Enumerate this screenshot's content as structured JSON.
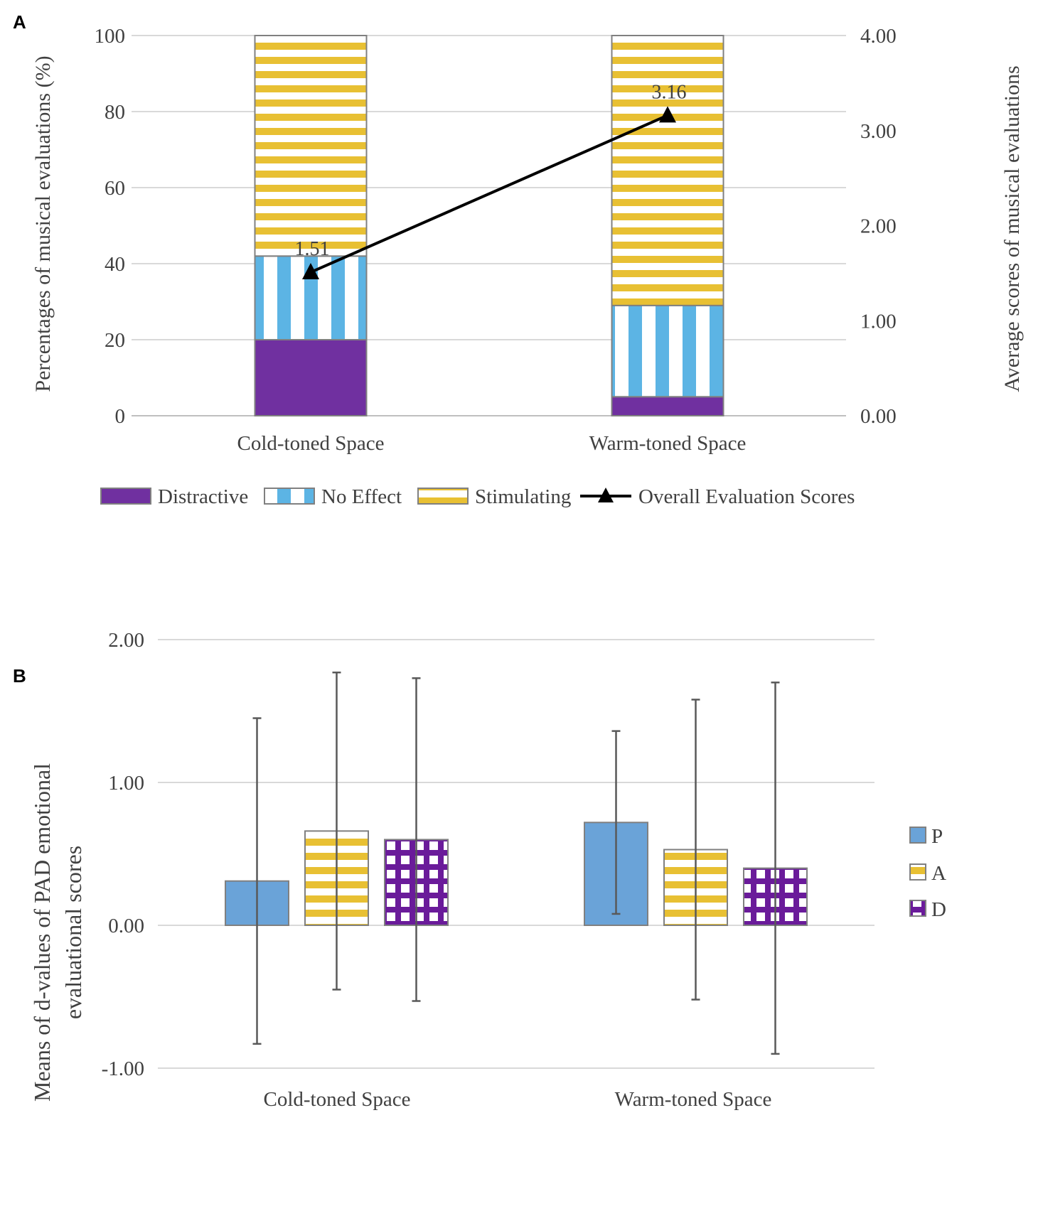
{
  "chart_data": [
    {
      "panel": "A",
      "type": "bar",
      "stacked": true,
      "categories": [
        "Cold-toned Space",
        "Warm-toned Space"
      ],
      "series": [
        {
          "name": "Distractive",
          "values": [
            20,
            5
          ],
          "color": "#7030a0",
          "pattern": "solid"
        },
        {
          "name": "No Effect",
          "values": [
            22,
            24
          ],
          "color": "#5cb4e4",
          "pattern": "vertical-stripes"
        },
        {
          "name": "Stimulating",
          "values": [
            58,
            71
          ],
          "color": "#e8c033",
          "pattern": "horizontal-stripes"
        }
      ],
      "line_series": {
        "name": "Overall Evaluation Scores",
        "values": [
          1.51,
          3.16
        ],
        "labels": [
          "1.51",
          "3.16"
        ],
        "axis": "right",
        "marker": "triangle",
        "color": "#000000"
      },
      "ylabel": "Percentages of musical evaluations (%)",
      "ylim": [
        0,
        100
      ],
      "yticks": [
        "0",
        "20",
        "40",
        "60",
        "80",
        "100"
      ],
      "y2label": "Average scores of musical evaluations",
      "y2lim": [
        0,
        4
      ],
      "y2ticks": [
        "0.00",
        "1.00",
        "2.00",
        "3.00",
        "4.00"
      ],
      "grid": true,
      "legend": "bottom"
    },
    {
      "panel": "B",
      "type": "bar",
      "categories": [
        "Cold-toned Space",
        "Warm-toned Space"
      ],
      "series": [
        {
          "name": "P",
          "values": [
            0.31,
            0.72
          ],
          "err_high": [
            1.45,
            1.36
          ],
          "err_low": [
            -0.83,
            0.08
          ],
          "color": "#6aa3d8",
          "pattern": "solid"
        },
        {
          "name": "A",
          "values": [
            0.66,
            0.53
          ],
          "err_high": [
            1.77,
            1.58
          ],
          "err_low": [
            -0.45,
            -0.52
          ],
          "color": "#e8c033",
          "pattern": "horizontal-stripes"
        },
        {
          "name": "D",
          "values": [
            0.6,
            0.4
          ],
          "err_high": [
            1.73,
            1.7
          ],
          "err_low": [
            -0.53,
            -0.9
          ],
          "color": "#6a1b9a",
          "pattern": "checker"
        }
      ],
      "ylabel_lines": [
        "Means of d-values of PAD emotional",
        "evaluational scores"
      ],
      "ylim": [
        -1,
        2
      ],
      "yticks": [
        "-1.00",
        "0.00",
        "1.00",
        "2.00"
      ],
      "grid": true,
      "legend": "right"
    }
  ],
  "colors": {
    "grid": "#d9d9d9",
    "bar_border": "#808080",
    "text": "#404040",
    "errorbar": "#595959"
  }
}
